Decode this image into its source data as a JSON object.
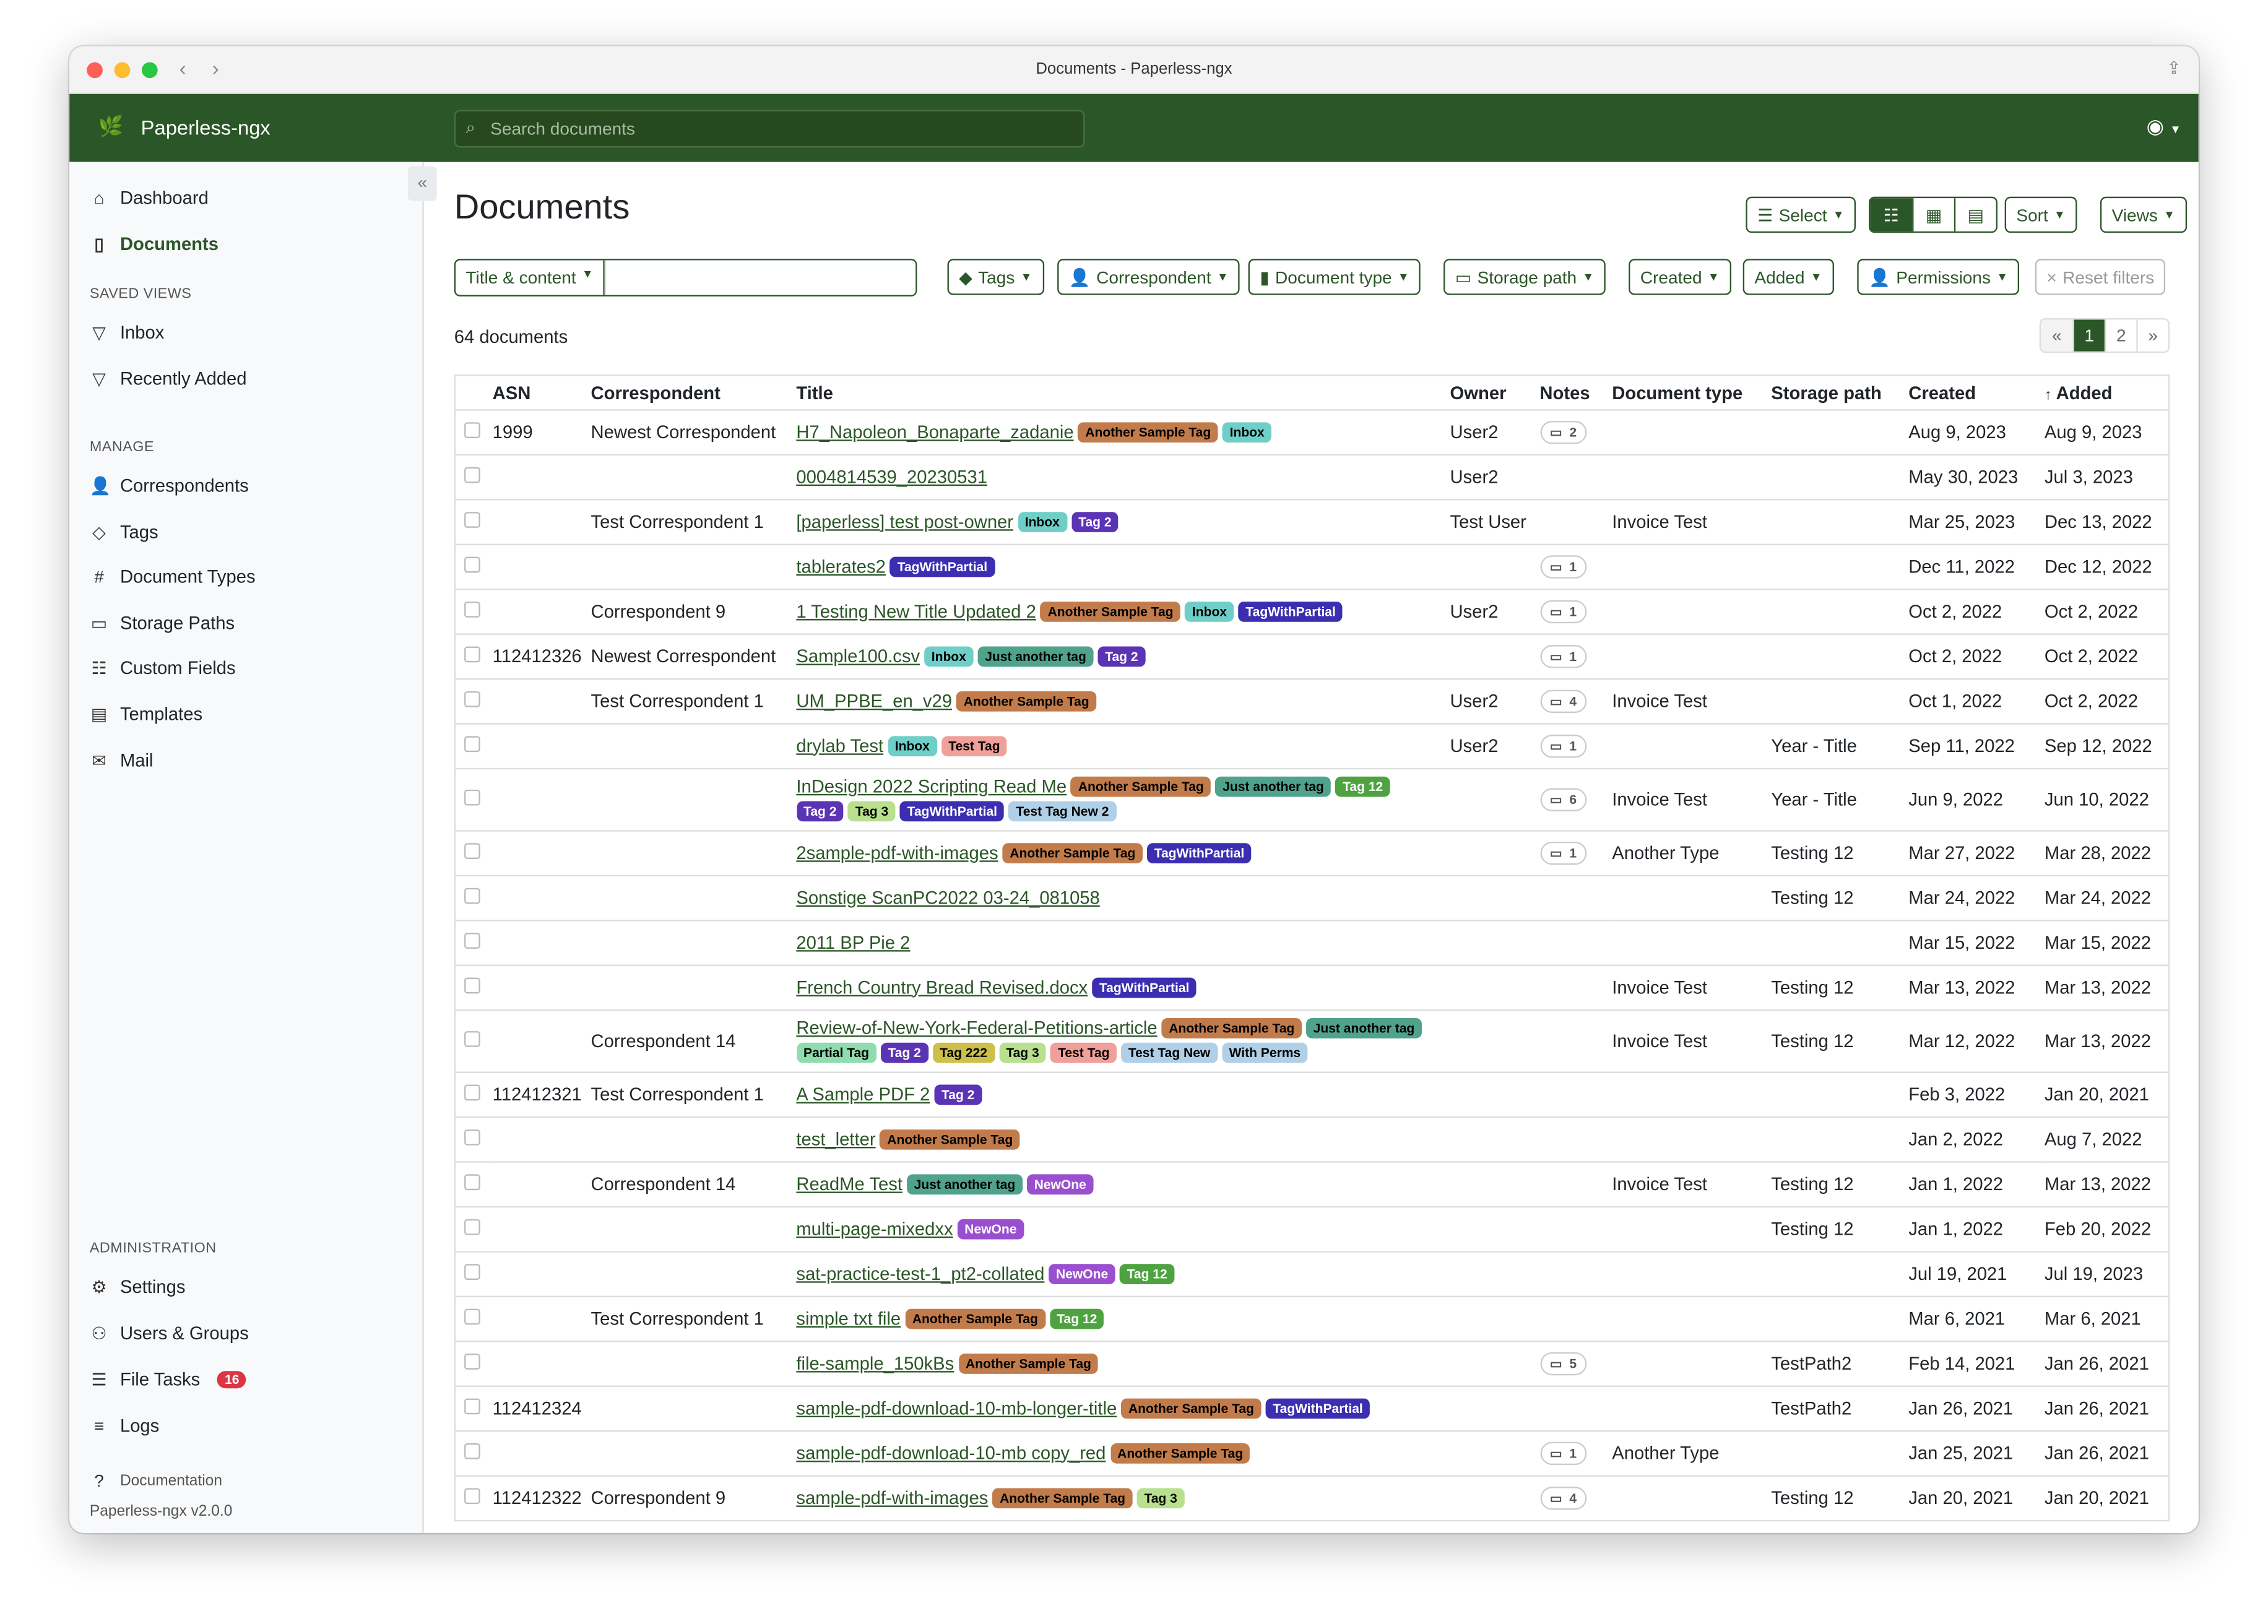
{
  "window": {
    "title": "Documents - Paperless-ngx"
  },
  "app": {
    "name": "Paperless-ngx",
    "search_placeholder": "Search documents",
    "accent": "#2b5627"
  },
  "sidebar": {
    "top": [
      {
        "label": "Dashboard",
        "icon": "house-icon"
      },
      {
        "label": "Documents",
        "icon": "files-icon",
        "active": true
      }
    ],
    "saved_views_heading": "SAVED VIEWS",
    "saved_views": [
      {
        "label": "Inbox",
        "icon": "funnel-icon"
      },
      {
        "label": "Recently Added",
        "icon": "funnel-icon"
      }
    ],
    "manage_heading": "MANAGE",
    "manage": [
      {
        "label": "Correspondents",
        "icon": "person-icon"
      },
      {
        "label": "Tags",
        "icon": "tags-icon"
      },
      {
        "label": "Document Types",
        "icon": "hash-icon"
      },
      {
        "label": "Storage Paths",
        "icon": "folder-icon"
      },
      {
        "label": "Custom Fields",
        "icon": "ui-radios-icon"
      },
      {
        "label": "Templates",
        "icon": "file-text-icon"
      },
      {
        "label": "Mail",
        "icon": "envelope-icon"
      }
    ],
    "admin_heading": "ADMINISTRATION",
    "admin": [
      {
        "label": "Settings",
        "icon": "gear-icon"
      },
      {
        "label": "Users & Groups",
        "icon": "people-icon"
      },
      {
        "label": "File Tasks",
        "icon": "list-task-icon",
        "badge": "16"
      },
      {
        "label": "Logs",
        "icon": "text-left-icon"
      }
    ],
    "documentation": "Documentation",
    "version": "Paperless-ngx v2.0.0"
  },
  "main": {
    "title": "Documents",
    "select_label": "Select",
    "sort_label": "Sort",
    "views_label": "Views",
    "title_content_label": "Title & content",
    "filters": [
      {
        "label": "Tags",
        "icon": "tag-icon"
      },
      {
        "label": "Correspondent",
        "icon": "person-icon"
      },
      {
        "label": "Document type",
        "icon": "file-icon"
      },
      {
        "label": "Storage path",
        "icon": "folder-icon"
      },
      {
        "label": "Created"
      },
      {
        "label": "Added"
      },
      {
        "label": "Permissions",
        "icon": "person-lock-icon"
      }
    ],
    "reset_label": "Reset filters",
    "count": "64 documents",
    "pager": {
      "prev": "«",
      "pages": [
        "1",
        "2"
      ],
      "current": "1",
      "next": "»"
    }
  },
  "table": {
    "columns": [
      "ASN",
      "Correspondent",
      "Title",
      "Owner",
      "Notes",
      "Document type",
      "Storage path",
      "Created",
      "Added"
    ],
    "sort_column": "Added",
    "rows": [
      {
        "asn": "1999",
        "corr": "Newest Correspondent",
        "title": "H7_Napoleon_Bonaparte_zadanie",
        "tags": [
          "Another Sample Tag",
          "Inbox"
        ],
        "owner": "User2",
        "notes": "2",
        "type": "",
        "path": "",
        "created": "Aug 9, 2023",
        "added": "Aug 9, 2023"
      },
      {
        "asn": "",
        "corr": "",
        "title": "0004814539_20230531",
        "tags": [],
        "owner": "User2",
        "notes": "",
        "type": "",
        "path": "",
        "created": "May 30, 2023",
        "added": "Jul 3, 2023"
      },
      {
        "asn": "",
        "corr": "Test Correspondent 1",
        "title": "[paperless] test post-owner",
        "tags": [
          "Inbox",
          "Tag 2"
        ],
        "owner": "Test User",
        "notes": "",
        "type": "Invoice Test",
        "path": "",
        "created": "Mar 25, 2023",
        "added": "Dec 13, 2022"
      },
      {
        "asn": "",
        "corr": "",
        "title": "tablerates2",
        "tags": [
          "TagWithPartial"
        ],
        "owner": "",
        "notes": "1",
        "type": "",
        "path": "",
        "created": "Dec 11, 2022",
        "added": "Dec 12, 2022"
      },
      {
        "asn": "",
        "corr": "Correspondent 9",
        "title": "1 Testing New Title Updated 2",
        "tags": [
          "Another Sample Tag",
          "Inbox",
          "TagWithPartial"
        ],
        "owner": "User2",
        "notes": "1",
        "type": "",
        "path": "",
        "created": "Oct 2, 2022",
        "added": "Oct 2, 2022"
      },
      {
        "asn": "112412326",
        "corr": "Newest Correspondent",
        "title": "Sample100.csv",
        "tags": [
          "Inbox",
          "Just another tag",
          "Tag 2"
        ],
        "owner": "",
        "notes": "1",
        "type": "",
        "path": "",
        "created": "Oct 2, 2022",
        "added": "Oct 2, 2022"
      },
      {
        "asn": "",
        "corr": "Test Correspondent 1",
        "title": "UM_PPBE_en_v29",
        "tags": [
          "Another Sample Tag"
        ],
        "owner": "User2",
        "notes": "4",
        "type": "Invoice Test",
        "path": "",
        "created": "Oct 1, 2022",
        "added": "Oct 2, 2022"
      },
      {
        "asn": "",
        "corr": "",
        "title": "drylab Test",
        "tags": [
          "Inbox",
          "Test Tag"
        ],
        "owner": "User2",
        "notes": "1",
        "type": "",
        "path": "Year - Title",
        "created": "Sep 11, 2022",
        "added": "Sep 12, 2022"
      },
      {
        "asn": "",
        "corr": "",
        "title": "InDesign 2022 Scripting Read Me",
        "tags": [
          "Another Sample Tag",
          "Just another tag",
          "Tag 12",
          "Tag 2",
          "Tag 3",
          "TagWithPartial",
          "Test Tag New 2"
        ],
        "owner": "",
        "notes": "6",
        "type": "Invoice Test",
        "path": "Year - Title",
        "created": "Jun 9, 2022",
        "added": "Jun 10, 2022"
      },
      {
        "asn": "",
        "corr": "",
        "title": "2sample-pdf-with-images",
        "tags": [
          "Another Sample Tag",
          "TagWithPartial"
        ],
        "owner": "",
        "notes": "1",
        "type": "Another Type",
        "path": "Testing 12",
        "created": "Mar 27, 2022",
        "added": "Mar 28, 2022"
      },
      {
        "asn": "",
        "corr": "",
        "title": "Sonstige ScanPC2022 03-24_081058",
        "tags": [],
        "owner": "",
        "notes": "",
        "type": "",
        "path": "Testing 12",
        "created": "Mar 24, 2022",
        "added": "Mar 24, 2022"
      },
      {
        "asn": "",
        "corr": "",
        "title": "2011 BP Pie 2",
        "tags": [],
        "owner": "",
        "notes": "",
        "type": "",
        "path": "",
        "created": "Mar 15, 2022",
        "added": "Mar 15, 2022"
      },
      {
        "asn": "",
        "corr": "",
        "title": "French Country Bread Revised.docx",
        "tags": [
          "TagWithPartial"
        ],
        "owner": "",
        "notes": "",
        "type": "Invoice Test",
        "path": "Testing 12",
        "created": "Mar 13, 2022",
        "added": "Mar 13, 2022"
      },
      {
        "asn": "",
        "corr": "Correspondent 14",
        "title": "Review-of-New-York-Federal-Petitions-article",
        "tags": [
          "Another Sample Tag",
          "Just another tag",
          "Partial Tag",
          "Tag 2",
          "Tag 222",
          "Tag 3",
          "Test Tag",
          "Test Tag New",
          "With Perms"
        ],
        "owner": "",
        "notes": "",
        "type": "Invoice Test",
        "path": "Testing 12",
        "created": "Mar 12, 2022",
        "added": "Mar 13, 2022"
      },
      {
        "asn": "112412321",
        "corr": "Test Correspondent 1",
        "title": "A Sample PDF 2",
        "tags": [
          "Tag 2"
        ],
        "owner": "",
        "notes": "",
        "type": "",
        "path": "",
        "created": "Feb 3, 2022",
        "added": "Jan 20, 2021"
      },
      {
        "asn": "",
        "corr": "",
        "title": "test_letter",
        "tags": [
          "Another Sample Tag"
        ],
        "owner": "",
        "notes": "",
        "type": "",
        "path": "",
        "created": "Jan 2, 2022",
        "added": "Aug 7, 2022"
      },
      {
        "asn": "",
        "corr": "Correspondent 14",
        "title": "ReadMe Test",
        "tags": [
          "Just another tag",
          "NewOne"
        ],
        "owner": "",
        "notes": "",
        "type": "Invoice Test",
        "path": "Testing 12",
        "created": "Jan 1, 2022",
        "added": "Mar 13, 2022"
      },
      {
        "asn": "",
        "corr": "",
        "title": "multi-page-mixedxx",
        "tags": [
          "NewOne"
        ],
        "owner": "",
        "notes": "",
        "type": "",
        "path": "Testing 12",
        "created": "Jan 1, 2022",
        "added": "Feb 20, 2022"
      },
      {
        "asn": "",
        "corr": "",
        "title": "sat-practice-test-1_pt2-collated",
        "tags": [
          "NewOne",
          "Tag 12"
        ],
        "owner": "",
        "notes": "",
        "type": "",
        "path": "",
        "created": "Jul 19, 2021",
        "added": "Jul 19, 2023"
      },
      {
        "asn": "",
        "corr": "Test Correspondent 1",
        "title": "simple txt file",
        "tags": [
          "Another Sample Tag",
          "Tag 12"
        ],
        "owner": "",
        "notes": "",
        "type": "",
        "path": "",
        "created": "Mar 6, 2021",
        "added": "Mar 6, 2021"
      },
      {
        "asn": "",
        "corr": "",
        "title": "file-sample_150kBs",
        "tags": [
          "Another Sample Tag"
        ],
        "owner": "",
        "notes": "5",
        "type": "",
        "path": "TestPath2",
        "created": "Feb 14, 2021",
        "added": "Jan 26, 2021"
      },
      {
        "asn": "112412324",
        "corr": "",
        "title": "sample-pdf-download-10-mb-longer-title",
        "tags": [
          "Another Sample Tag",
          "TagWithPartial"
        ],
        "owner": "",
        "notes": "",
        "type": "",
        "path": "TestPath2",
        "created": "Jan 26, 2021",
        "added": "Jan 26, 2021"
      },
      {
        "asn": "",
        "corr": "",
        "title": "sample-pdf-download-10-mb copy_red",
        "tags": [
          "Another Sample Tag"
        ],
        "owner": "",
        "notes": "1",
        "type": "Another Type",
        "path": "",
        "created": "Jan 25, 2021",
        "added": "Jan 26, 2021"
      },
      {
        "asn": "112412322",
        "corr": "Correspondent 9",
        "title": "sample-pdf-with-images",
        "tags": [
          "Another Sample Tag",
          "Tag 3"
        ],
        "owner": "",
        "notes": "4",
        "type": "",
        "path": "Testing 12",
        "created": "Jan 20, 2021",
        "added": "Jan 20, 2021"
      }
    ]
  },
  "tag_colors": {
    "Another Sample Tag": {
      "bg": "#c27c4b",
      "fg": "#000000"
    },
    "Inbox": {
      "bg": "#6fcfc8",
      "fg": "#000000"
    },
    "Tag 2": {
      "bg": "#5b33b5",
      "fg": "#ffffff"
    },
    "TagWithPartial": {
      "bg": "#3b2eb0",
      "fg": "#ffffff"
    },
    "Just another tag": {
      "bg": "#4fa38a",
      "fg": "#000000"
    },
    "Test Tag": {
      "bg": "#f0a09a",
      "fg": "#000000"
    },
    "Tag 12": {
      "bg": "#4ea23f",
      "fg": "#ffffff"
    },
    "Tag 3": {
      "bg": "#b8e08e",
      "fg": "#000000"
    },
    "Test Tag New 2": {
      "bg": "#b0d0e8",
      "fg": "#000000"
    },
    "Test Tag New": {
      "bg": "#b0d0e8",
      "fg": "#000000"
    },
    "With Perms": {
      "bg": "#b0d0e8",
      "fg": "#000000"
    },
    "Partial Tag": {
      "bg": "#8fdcae",
      "fg": "#000000"
    },
    "Tag 222": {
      "bg": "#ccc04a",
      "fg": "#000000"
    },
    "NewOne": {
      "bg": "#9a4fd0",
      "fg": "#ffffff"
    }
  }
}
